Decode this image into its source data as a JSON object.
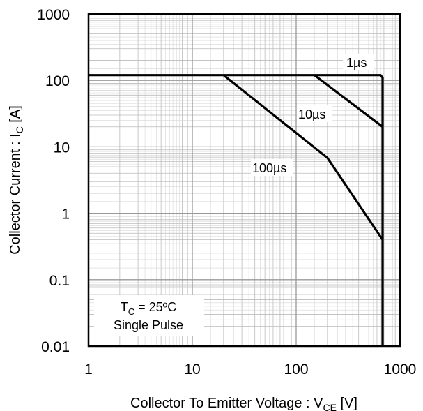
{
  "chart_data": {
    "type": "line",
    "x_scale": "log",
    "y_scale": "log",
    "xlim": [
      1,
      1000
    ],
    "ylim": [
      0.01,
      1000
    ],
    "xticks": [
      1,
      10,
      100,
      1000
    ],
    "yticks": [
      0.01,
      0.1,
      1,
      10,
      100,
      1000
    ],
    "xtick_labels": [
      "1",
      "10",
      "100",
      "1000"
    ],
    "ytick_labels": [
      "0.01",
      "0.1",
      "1",
      "10",
      "100",
      "1000"
    ],
    "xlabel": {
      "main": "Collector To Emitter Voltage : V",
      "sub": "CE",
      "unit": " [V]"
    },
    "ylabel": {
      "main": "Collector Current : I",
      "sub": "C",
      "unit": " [A]"
    },
    "grid": true,
    "series": [
      {
        "name": "1µs",
        "x": [
          1,
          650,
          680,
          680
        ],
        "y": [
          120,
          120,
          110,
          0.01
        ]
      },
      {
        "name": "10µs",
        "x": [
          150,
          680
        ],
        "y": [
          120,
          20
        ]
      },
      {
        "name": "100µs",
        "x": [
          20,
          200,
          680
        ],
        "y": [
          120,
          6.8,
          0.4
        ]
      }
    ],
    "annotations": {
      "tc_line": {
        "main": "T",
        "sub": "C",
        "rest": " = 25ºC"
      },
      "pulse": "Single Pulse"
    }
  }
}
